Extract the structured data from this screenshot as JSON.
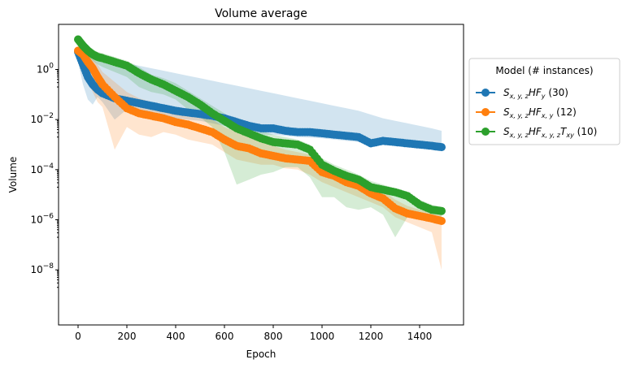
{
  "chart_data": {
    "type": "line",
    "title": "Volume average",
    "xlabel": "Epoch",
    "ylabel": "Volume",
    "xlim": [
      -80,
      1580
    ],
    "ylim_log10": [
      -10.2,
      1.8
    ],
    "yscale": "log",
    "xticks": [
      0,
      200,
      400,
      600,
      800,
      1000,
      1200,
      1400
    ],
    "yticks": [
      {
        "exp": 0,
        "base": "10",
        "sup": "0"
      },
      {
        "exp": -2,
        "base": "10",
        "sup": "−2"
      },
      {
        "exp": -4,
        "base": "10",
        "sup": "−4"
      },
      {
        "exp": -6,
        "base": "10",
        "sup": "−6"
      },
      {
        "exp": -8,
        "base": "10",
        "sup": "−8"
      }
    ],
    "grid": false,
    "legend": {
      "title": "Model (# instances)",
      "placement": "outside-right",
      "entries": [
        {
          "main": "S",
          "sub1": "x, y, z",
          "mid": "HF",
          "sub2": "y",
          "tail": "",
          "sub3": "",
          "count": " (30)"
        },
        {
          "main": "S",
          "sub1": "x, y, z",
          "mid": "HF",
          "sub2": "x, y",
          "tail": "",
          "sub3": "",
          "count": " (12)"
        },
        {
          "main": "S",
          "sub1": "x, y, z",
          "mid": "HF",
          "sub2": "x, y, z",
          "tail": "T",
          "sub3": "xy",
          "count": " (10)"
        }
      ]
    },
    "series": [
      {
        "name": "S_{x,y,z}HF_y (30)",
        "color": "#1f77b4",
        "x": [
          0,
          20,
          40,
          60,
          80,
          100,
          150,
          200,
          250,
          300,
          350,
          400,
          450,
          500,
          550,
          600,
          650,
          700,
          750,
          800,
          850,
          900,
          950,
          1000,
          1050,
          1100,
          1150,
          1200,
          1250,
          1300,
          1350,
          1400,
          1450,
          1490
        ],
        "log10_y": [
          0.7,
          0.2,
          -0.3,
          -0.6,
          -0.8,
          -0.95,
          -1.15,
          -1.25,
          -1.35,
          -1.45,
          -1.55,
          -1.65,
          -1.72,
          -1.78,
          -1.85,
          -1.95,
          -2.1,
          -2.25,
          -2.35,
          -2.35,
          -2.45,
          -2.5,
          -2.5,
          -2.55,
          -2.6,
          -2.65,
          -2.7,
          -2.95,
          -2.85,
          -2.9,
          -2.95,
          -3.0,
          -3.05,
          -3.1
        ],
        "band_upper": [
          0.9,
          0.75,
          0.6,
          0.55,
          0.5,
          0.45,
          0.35,
          0.25,
          0.15,
          0.05,
          -0.05,
          -0.15,
          -0.25,
          -0.35,
          -0.45,
          -0.55,
          -0.65,
          -0.75,
          -0.85,
          -0.95,
          -1.05,
          -1.15,
          -1.25,
          -1.35,
          -1.45,
          -1.55,
          -1.65,
          -1.8,
          -1.95,
          -2.05,
          -2.15,
          -2.25,
          -2.35,
          -2.45
        ],
        "band_lower": [
          0.3,
          -0.6,
          -1.2,
          -1.4,
          -1.1,
          -1.3,
          -2.0,
          -1.6,
          -1.7,
          -1.75,
          -1.85,
          -1.95,
          -2.0,
          -2.05,
          -2.15,
          -2.25,
          -2.4,
          -2.55,
          -2.6,
          -2.6,
          -2.65,
          -2.7,
          -2.72,
          -2.75,
          -2.8,
          -2.85,
          -2.9,
          -3.05,
          -2.95,
          -3.0,
          -3.05,
          -3.1,
          -3.12,
          -3.15
        ]
      },
      {
        "name": "S_{x,y,z}HF_{x,y} (12)",
        "color": "#ff7f0e",
        "x": [
          0,
          20,
          40,
          60,
          80,
          100,
          150,
          200,
          250,
          300,
          350,
          400,
          450,
          500,
          550,
          600,
          650,
          700,
          750,
          800,
          850,
          900,
          950,
          1000,
          1050,
          1100,
          1150,
          1200,
          1250,
          1300,
          1350,
          1400,
          1450,
          1490
        ],
        "log10_y": [
          0.75,
          0.6,
          0.3,
          0.05,
          -0.3,
          -0.6,
          -1.1,
          -1.55,
          -1.75,
          -1.85,
          -1.95,
          -2.1,
          -2.2,
          -2.35,
          -2.5,
          -2.8,
          -3.05,
          -3.15,
          -3.35,
          -3.45,
          -3.55,
          -3.6,
          -3.65,
          -4.1,
          -4.25,
          -4.5,
          -4.65,
          -4.95,
          -5.15,
          -5.55,
          -5.75,
          -5.85,
          -5.95,
          -6.05
        ],
        "band_upper": [
          0.85,
          0.75,
          0.6,
          0.45,
          0.2,
          -0.1,
          -0.5,
          -0.9,
          -1.15,
          -1.3,
          -1.45,
          -1.6,
          -1.7,
          -1.85,
          -2.0,
          -2.3,
          -2.5,
          -2.7,
          -2.9,
          -3.05,
          -3.2,
          -3.3,
          -3.4,
          -3.75,
          -3.95,
          -4.2,
          -4.35,
          -4.6,
          -4.85,
          -5.2,
          -5.45,
          -5.6,
          -5.7,
          -5.8
        ],
        "band_lower": [
          0.6,
          0.2,
          -0.5,
          -0.9,
          -1.3,
          -1.5,
          -3.2,
          -2.3,
          -2.6,
          -2.7,
          -2.5,
          -2.6,
          -2.8,
          -2.9,
          -3.0,
          -3.3,
          -3.6,
          -3.7,
          -3.8,
          -3.8,
          -3.95,
          -4.0,
          -4.2,
          -4.5,
          -4.7,
          -4.9,
          -5.1,
          -5.3,
          -5.5,
          -5.9,
          -6.1,
          -6.3,
          -6.5,
          -8.0
        ]
      },
      {
        "name": "S_{x,y,z}HF_{x,y,z}T_{xy} (10)",
        "color": "#2ca02c",
        "x": [
          0,
          20,
          40,
          60,
          80,
          100,
          150,
          200,
          250,
          300,
          350,
          400,
          450,
          500,
          550,
          600,
          650,
          700,
          750,
          800,
          850,
          900,
          950,
          1000,
          1050,
          1100,
          1150,
          1200,
          1250,
          1300,
          1350,
          1400,
          1450,
          1490
        ],
        "log10_y": [
          1.2,
          0.95,
          0.75,
          0.6,
          0.5,
          0.45,
          0.3,
          0.15,
          -0.15,
          -0.4,
          -0.6,
          -0.85,
          -1.1,
          -1.4,
          -1.75,
          -2.05,
          -2.35,
          -2.55,
          -2.75,
          -2.9,
          -2.95,
          -3.0,
          -3.2,
          -3.8,
          -4.05,
          -4.25,
          -4.4,
          -4.7,
          -4.8,
          -4.9,
          -5.05,
          -5.4,
          -5.6,
          -5.65
        ],
        "band_upper": [
          1.3,
          1.15,
          0.95,
          0.8,
          0.7,
          0.65,
          0.5,
          0.35,
          0.1,
          -0.2,
          -0.35,
          -0.55,
          -0.85,
          -1.15,
          -1.45,
          -1.75,
          -2.05,
          -2.25,
          -2.45,
          -2.6,
          -2.7,
          -2.8,
          -3.0,
          -3.55,
          -3.8,
          -4.0,
          -4.2,
          -4.45,
          -4.6,
          -4.75,
          -4.9,
          -5.2,
          -5.4,
          -5.5
        ],
        "band_lower": [
          1.0,
          0.7,
          0.5,
          0.35,
          0.2,
          0.1,
          -0.1,
          -0.3,
          -0.7,
          -0.9,
          -1.0,
          -1.2,
          -1.6,
          -1.9,
          -2.3,
          -3.3,
          -4.6,
          -4.4,
          -4.2,
          -4.1,
          -3.9,
          -3.9,
          -4.3,
          -5.1,
          -5.1,
          -5.5,
          -5.6,
          -5.5,
          -5.8,
          -6.7,
          -5.9,
          -6.0,
          -6.1,
          -6.2
        ]
      }
    ]
  }
}
